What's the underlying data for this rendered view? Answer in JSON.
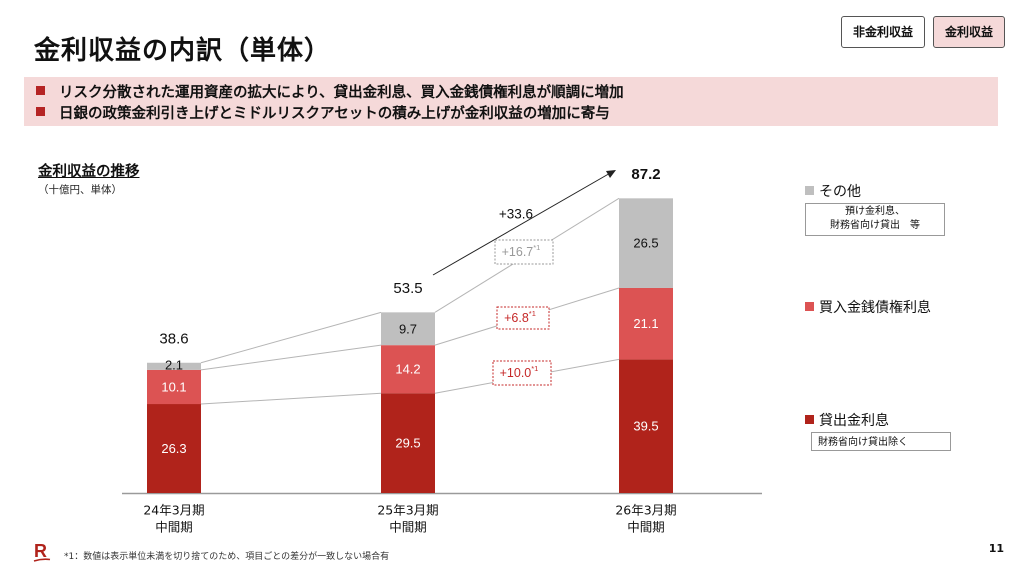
{
  "page": {
    "title": "金利収益の内訳（単体）",
    "tabs": [
      {
        "label": "非金利収益",
        "active": false
      },
      {
        "label": "金利収益",
        "active": true
      }
    ],
    "summary_bullets": [
      "リスク分散された運用資産の拡大により、貸出金利息、買入金銭債権利息が順調に増加",
      "日銀の政策金利引き上げとミドルリスクアセットの積み上げが金利収益の増加に寄与"
    ],
    "footnote": "*1：数値は表示単位未満を切り捨てのため、項目ごとの差分が一致しない場合有",
    "page_number": "11",
    "logo_text": "R"
  },
  "legend": [
    {
      "label": "その他",
      "note": [
        "預け金利息、",
        "財務省向け貸出　等"
      ],
      "color": "#bfbfbf"
    },
    {
      "label": "買入金銭債権利息",
      "note": null,
      "color": "#dc5353"
    },
    {
      "label": "貸出金利息",
      "note": [
        "財務省向け貸出除く"
      ],
      "color": "#b0231b"
    }
  ],
  "chart_data": {
    "type": "bar",
    "stacked": true,
    "title": "金利収益の推移",
    "unit": "（十億円、単体）",
    "categories": [
      [
        "24年3月期",
        "中間期"
      ],
      [
        "25年3月期",
        "中間期"
      ],
      [
        "26年3月期",
        "中間期"
      ]
    ],
    "series": [
      {
        "name": "貸出金利息",
        "values": [
          26.3,
          29.5,
          39.5
        ],
        "color": "#b0231b",
        "label_color": "#ffffff"
      },
      {
        "name": "買入金銭債権利息",
        "values": [
          10.1,
          14.2,
          21.1
        ],
        "color": "#dc5353",
        "label_color": "#ffffff"
      },
      {
        "name": "その他",
        "values": [
          2.1,
          9.7,
          26.5
        ],
        "color": "#bfbfbf",
        "label_color": "#111111"
      }
    ],
    "totals": [
      "38.6",
      "53.5",
      "87.2"
    ],
    "ylim": [
      0,
      87.2
    ],
    "annotations": {
      "total_change": "+33.6",
      "series_changes": [
        {
          "series": "その他",
          "label": "+16.7",
          "sup": "*1",
          "color": "#999999"
        },
        {
          "series": "買入金銭債権利息",
          "label": "+6.8",
          "sup": "*1",
          "color": "#c62828"
        },
        {
          "series": "貸出金利息",
          "label": "+10.0",
          "sup": "*1",
          "color": "#c62828"
        }
      ]
    }
  }
}
